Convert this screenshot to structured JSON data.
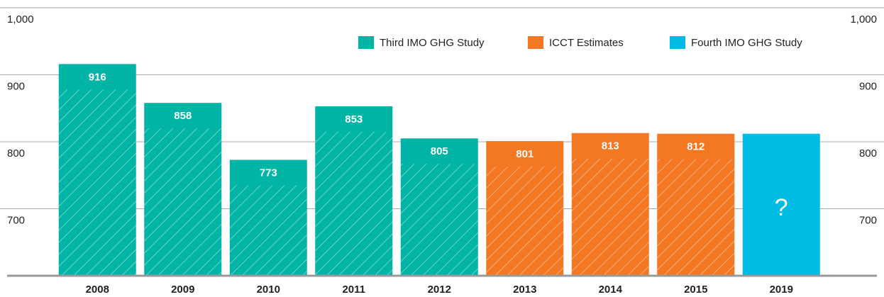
{
  "chart_data": {
    "type": "bar",
    "categories": [
      "2008",
      "2009",
      "2010",
      "2011",
      "2012",
      "2013",
      "2014",
      "2015",
      "2019"
    ],
    "series": [
      {
        "name": "Third IMO GHG Study",
        "color": "#00b5a5",
        "hatch": true,
        "values": [
          916,
          858,
          773,
          853,
          805,
          null,
          null,
          null,
          null
        ]
      },
      {
        "name": "ICCT Estimates",
        "color": "#f47721",
        "hatch": true,
        "values": [
          null,
          null,
          null,
          null,
          null,
          801,
          813,
          812,
          null
        ]
      },
      {
        "name": "Fourth IMO GHG Study",
        "color": "#00bce4",
        "hatch": false,
        "values": [
          null,
          null,
          null,
          null,
          null,
          null,
          null,
          null,
          812
        ],
        "annotation": "?"
      }
    ],
    "ylim": [
      600,
      1000
    ],
    "yticks": [
      {
        "value": 700,
        "label": "700"
      },
      {
        "value": 800,
        "label": "800"
      },
      {
        "value": 900,
        "label": "900"
      },
      {
        "value": 1000,
        "label": "1,000"
      }
    ],
    "grid": true,
    "legend": "top-right"
  }
}
